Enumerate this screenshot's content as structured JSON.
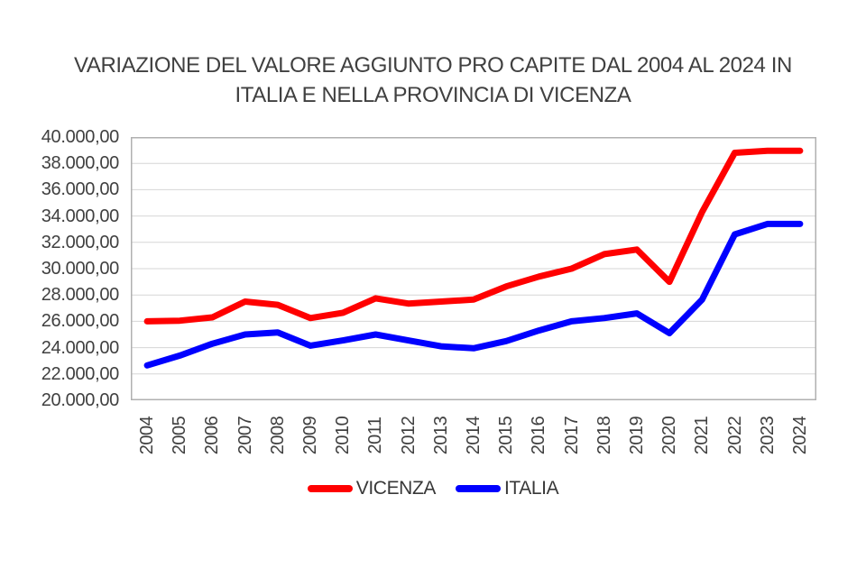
{
  "chart": {
    "title_lines": [
      "VARIAZIONE DEL VALORE AGGIUNTO PRO CAPITE DAL 2004 AL 2024 IN",
      "ITALIA E NELLA PROVINCIA DI VICENZA"
    ]
  },
  "chart_data": {
    "type": "line",
    "title": "VARIAZIONE DEL VALORE AGGIUNTO PRO CAPITE DAL 2004 AL 2024 IN ITALIA E NELLA PROVINCIA DI VICENZA",
    "categories": [
      "2004",
      "2005",
      "2006",
      "2007",
      "2008",
      "2009",
      "2010",
      "2011",
      "2012",
      "2013",
      "2014",
      "2015",
      "2016",
      "2017",
      "2018",
      "2019",
      "2020",
      "2021",
      "2022",
      "2023",
      "2024"
    ],
    "series": [
      {
        "name": "VICENZA",
        "color": "#ff0000",
        "values": [
          26000,
          26050,
          26300,
          27500,
          27250,
          26250,
          26650,
          27750,
          27350,
          27500,
          27650,
          28650,
          29400,
          30000,
          31100,
          31450,
          29000,
          34300,
          38800,
          38950,
          38950
        ]
      },
      {
        "name": "ITALIA",
        "color": "#0000ff",
        "values": [
          22650,
          23400,
          24300,
          25000,
          25150,
          24150,
          24550,
          25000,
          24550,
          24100,
          23950,
          24500,
          25300,
          26000,
          26250,
          26600,
          25100,
          27650,
          32600,
          33400,
          33400
        ]
      }
    ],
    "y_axis": {
      "min": 20000,
      "max": 40000,
      "step": 2000,
      "tick_labels": [
        "40.000,00",
        "38.000,00",
        "36.000,00",
        "34.000,00",
        "32.000,00",
        "30.000,00",
        "28.000,00",
        "26.000,00",
        "24.000,00",
        "22.000,00",
        "20.000,00"
      ]
    },
    "x_label_rotation": -90,
    "grid": true,
    "legend_position": "bottom",
    "plot_border_color": "#b0b0b0",
    "gridline_color": "#d6d6d6"
  }
}
